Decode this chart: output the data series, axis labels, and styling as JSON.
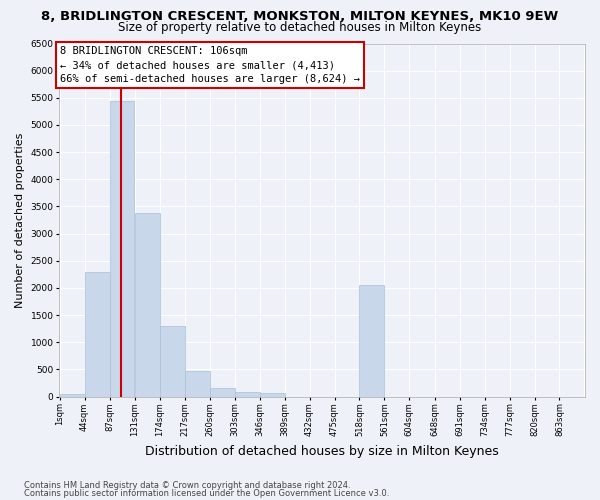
{
  "title": "8, BRIDLINGTON CRESCENT, MONKSTON, MILTON KEYNES, MK10 9EW",
  "subtitle": "Size of property relative to detached houses in Milton Keynes",
  "xlabel": "Distribution of detached houses by size in Milton Keynes",
  "ylabel": "Number of detached properties",
  "footnote1": "Contains HM Land Registry data © Crown copyright and database right 2024.",
  "footnote2": "Contains public sector information licensed under the Open Government Licence v3.0.",
  "annotation_line1": "8 BRIDLINGTON CRESCENT: 106sqm",
  "annotation_line2": "← 34% of detached houses are smaller (4,413)",
  "annotation_line3": "66% of semi-detached houses are larger (8,624) →",
  "property_size": 106,
  "bin_width": 43,
  "bin_starts": [
    1,
    44,
    87,
    131,
    174,
    217,
    260,
    303,
    346,
    389,
    432,
    475,
    518,
    561,
    604,
    648,
    691,
    734,
    777,
    820,
    863
  ],
  "values": [
    50,
    2300,
    5450,
    3380,
    1300,
    480,
    160,
    90,
    60,
    0,
    0,
    0,
    2050,
    0,
    0,
    0,
    0,
    0,
    0,
    0,
    0
  ],
  "bar_color": "#c8d8ea",
  "bar_edgecolor": "#a8c0d8",
  "vline_color": "#cc0000",
  "ylim": [
    0,
    6500
  ],
  "yticks": [
    0,
    500,
    1000,
    1500,
    2000,
    2500,
    3000,
    3500,
    4000,
    4500,
    5000,
    5500,
    6000,
    6500
  ],
  "annotation_box_edgecolor": "#cc0000",
  "background_color": "#eef2f8",
  "grid_color": "#ffffff",
  "title_fontsize": 9.5,
  "subtitle_fontsize": 8.5,
  "ylabel_fontsize": 8,
  "xlabel_fontsize": 9,
  "annotation_fontsize": 7.5,
  "tick_fontsize": 6,
  "footnote_fontsize": 6
}
